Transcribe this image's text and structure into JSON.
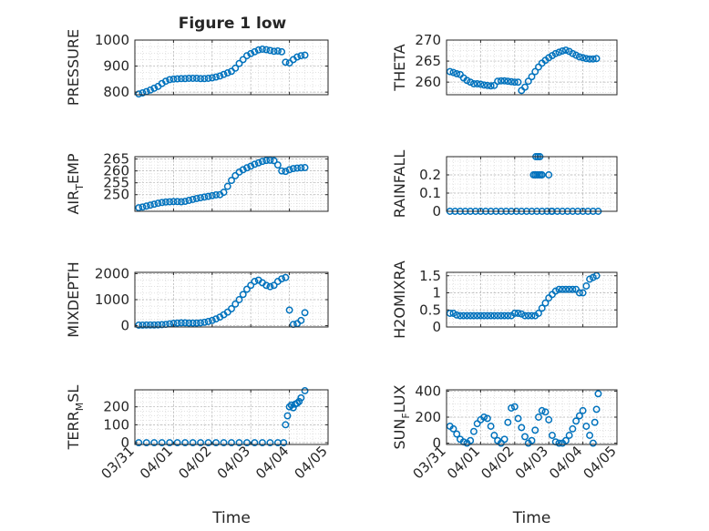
{
  "figure": {
    "title": "Figure 1 low"
  },
  "colors": {
    "marker": "#0072BD",
    "axis": "#262626",
    "grid": "#b3b3b3",
    "minor_grid": "#d0d0d0"
  },
  "time_ticks": [
    "03/31",
    "04/01",
    "04/02",
    "04/03",
    "04/04",
    "04/05"
  ],
  "chart_data": [
    {
      "type": "scatter",
      "ylabel": "PRESSURE",
      "xlabel": "",
      "ylim": [
        790,
        1000
      ],
      "yticks": [
        800,
        900,
        1000
      ],
      "grid": true,
      "x": [
        0.1,
        0.2,
        0.3,
        0.4,
        0.5,
        0.6,
        0.7,
        0.8,
        0.9,
        1.0,
        1.1,
        1.2,
        1.3,
        1.4,
        1.5,
        1.6,
        1.7,
        1.8,
        1.9,
        2.0,
        2.1,
        2.2,
        2.3,
        2.4,
        2.5,
        2.6,
        2.7,
        2.8,
        2.9,
        3.0,
        3.1,
        3.2,
        3.3,
        3.4,
        3.5,
        3.6,
        3.7,
        3.8,
        3.9,
        4.0,
        4.1,
        4.2,
        4.3,
        4.4
      ],
      "y": [
        793,
        797,
        802,
        808,
        815,
        822,
        833,
        842,
        848,
        850,
        851,
        852,
        852,
        853,
        853,
        853,
        852,
        852,
        853,
        855,
        858,
        862,
        868,
        874,
        880,
        892,
        910,
        925,
        940,
        948,
        955,
        962,
        965,
        963,
        960,
        957,
        958,
        955,
        915,
        912,
        925,
        935,
        940,
        942
      ]
    },
    {
      "type": "scatter",
      "ylabel": "THETA",
      "xlabel": "",
      "ylim": [
        257,
        270
      ],
      "yticks": [
        260,
        265,
        270
      ],
      "grid": true,
      "x": [
        0.1,
        0.2,
        0.3,
        0.4,
        0.5,
        0.6,
        0.7,
        0.8,
        0.9,
        1.0,
        1.1,
        1.2,
        1.3,
        1.4,
        1.5,
        1.6,
        1.7,
        1.8,
        1.9,
        2.0,
        2.1,
        2.2,
        2.3,
        2.4,
        2.5,
        2.6,
        2.7,
        2.8,
        2.9,
        3.0,
        3.1,
        3.2,
        3.3,
        3.4,
        3.5,
        3.6,
        3.7,
        3.8,
        3.9,
        4.0,
        4.1,
        4.2,
        4.3,
        4.4
      ],
      "y": [
        262.5,
        262.3,
        262.0,
        261.8,
        261.0,
        260.4,
        260.0,
        259.6,
        259.6,
        259.5,
        259.3,
        259.2,
        259.1,
        259.2,
        260.2,
        260.3,
        260.3,
        260.2,
        260.1,
        260.0,
        260.0,
        258.0,
        258.8,
        260.2,
        261.3,
        262.5,
        263.6,
        264.5,
        265.2,
        265.8,
        266.3,
        266.8,
        267.1,
        267.4,
        267.6,
        267.3,
        266.8,
        266.4,
        266.0,
        265.8,
        265.6,
        265.5,
        265.5,
        265.6
      ]
    },
    {
      "type": "scatter",
      "ylabel": "AIR_TEMP",
      "xlabel": "",
      "ylim": [
        243,
        266
      ],
      "yticks": [
        250,
        255,
        260,
        265
      ],
      "grid": true,
      "x": [
        0.1,
        0.2,
        0.3,
        0.4,
        0.5,
        0.6,
        0.7,
        0.8,
        0.9,
        1.0,
        1.1,
        1.2,
        1.3,
        1.4,
        1.5,
        1.6,
        1.7,
        1.8,
        1.9,
        2.0,
        2.1,
        2.2,
        2.3,
        2.4,
        2.5,
        2.6,
        2.7,
        2.8,
        2.9,
        3.0,
        3.1,
        3.2,
        3.3,
        3.4,
        3.5,
        3.6,
        3.7,
        3.8,
        3.9,
        4.0,
        4.1,
        4.2,
        4.3,
        4.4
      ],
      "y": [
        244.5,
        244.8,
        245.2,
        245.6,
        246.0,
        246.4,
        246.7,
        246.9,
        247.0,
        247.1,
        247.1,
        247.0,
        247.2,
        247.6,
        248.0,
        248.4,
        248.7,
        249.0,
        249.3,
        249.6,
        249.9,
        250.0,
        251.0,
        253.5,
        256.0,
        258.0,
        259.5,
        260.5,
        261.3,
        262.0,
        262.8,
        263.4,
        264.0,
        264.4,
        264.5,
        264.3,
        262.5,
        260.0,
        259.8,
        260.5,
        261.0,
        261.2,
        261.3,
        261.4
      ]
    },
    {
      "type": "scatter",
      "ylabel": "RAINFALL",
      "xlabel": "",
      "ylim": [
        0,
        0.3
      ],
      "yticks": [
        0,
        0.1,
        0.2
      ],
      "grid": true,
      "x": [
        0.1,
        0.25,
        0.4,
        0.55,
        0.7,
        0.85,
        1.0,
        1.15,
        1.3,
        1.45,
        1.6,
        1.75,
        1.9,
        2.05,
        2.2,
        2.35,
        2.5,
        2.65,
        2.8,
        2.95,
        3.1,
        3.25,
        3.4,
        3.55,
        3.7,
        3.85,
        4.0,
        4.15,
        4.3,
        4.45,
        2.55,
        2.6,
        2.65,
        2.7,
        2.75,
        2.8,
        2.62,
        2.68,
        2.74,
        3.0,
        3.08
      ],
      "y": [
        0,
        0,
        0,
        0,
        0,
        0,
        0,
        0,
        0,
        0,
        0,
        0,
        0,
        0,
        0,
        0,
        0,
        0,
        0,
        0,
        0,
        0,
        0,
        0,
        0,
        0,
        0,
        0,
        0,
        0,
        0.2,
        0.2,
        0.2,
        0.2,
        0.2,
        0.2,
        0.3,
        0.3,
        0.3,
        0.2,
        0
      ]
    },
    {
      "type": "scatter",
      "ylabel": "MIXDEPTH",
      "xlabel": "",
      "ylim": [
        -50,
        2050
      ],
      "yticks": [
        0,
        1000,
        2000
      ],
      "grid": true,
      "x": [
        0.1,
        0.2,
        0.3,
        0.4,
        0.5,
        0.6,
        0.7,
        0.8,
        0.9,
        1.0,
        1.1,
        1.2,
        1.3,
        1.4,
        1.5,
        1.6,
        1.7,
        1.8,
        1.9,
        2.0,
        2.1,
        2.2,
        2.3,
        2.4,
        2.5,
        2.6,
        2.7,
        2.8,
        2.9,
        3.0,
        3.1,
        3.2,
        3.3,
        3.4,
        3.5,
        3.6,
        3.7,
        3.8,
        3.9,
        4.0,
        4.1,
        4.2,
        4.3,
        4.4
      ],
      "y": [
        20,
        22,
        25,
        25,
        28,
        30,
        40,
        50,
        70,
        90,
        100,
        110,
        110,
        100,
        100,
        100,
        110,
        130,
        160,
        200,
        260,
        330,
        420,
        520,
        650,
        830,
        1000,
        1200,
        1400,
        1550,
        1700,
        1750,
        1650,
        1550,
        1500,
        1550,
        1700,
        1800,
        1850,
        600,
        50,
        80,
        200,
        500
      ]
    },
    {
      "type": "scatter",
      "ylabel": "H2OMIXRA",
      "xlabel": "",
      "ylim": [
        0,
        1.6
      ],
      "yticks": [
        0,
        0.5,
        1,
        1.5
      ],
      "grid": true,
      "x": [
        0.1,
        0.2,
        0.3,
        0.4,
        0.5,
        0.6,
        0.7,
        0.8,
        0.9,
        1.0,
        1.1,
        1.2,
        1.3,
        1.4,
        1.5,
        1.6,
        1.7,
        1.8,
        1.9,
        2.0,
        2.1,
        2.2,
        2.3,
        2.4,
        2.5,
        2.6,
        2.7,
        2.8,
        2.9,
        3.0,
        3.1,
        3.2,
        3.3,
        3.4,
        3.5,
        3.6,
        3.7,
        3.8,
        3.9,
        4.0,
        4.1,
        4.2,
        4.3,
        4.4
      ],
      "y": [
        0.4,
        0.4,
        0.35,
        0.33,
        0.33,
        0.33,
        0.33,
        0.33,
        0.33,
        0.33,
        0.33,
        0.33,
        0.33,
        0.33,
        0.33,
        0.33,
        0.33,
        0.33,
        0.33,
        0.4,
        0.4,
        0.38,
        0.33,
        0.33,
        0.33,
        0.33,
        0.4,
        0.55,
        0.7,
        0.85,
        0.95,
        1.05,
        1.1,
        1.1,
        1.1,
        1.1,
        1.1,
        1.1,
        1.0,
        1.0,
        1.2,
        1.4,
        1.45,
        1.5
      ]
    },
    {
      "type": "scatter",
      "ylabel": "TERR_MSL",
      "xlabel": "Time",
      "ylim": [
        -10,
        295
      ],
      "yticks": [
        0,
        100,
        200
      ],
      "grid": true,
      "x": [
        0.1,
        0.3,
        0.5,
        0.7,
        0.9,
        1.1,
        1.3,
        1.5,
        1.7,
        1.9,
        2.1,
        2.3,
        2.5,
        2.7,
        2.9,
        3.1,
        3.3,
        3.5,
        3.7,
        3.85,
        3.9,
        3.95,
        4.0,
        4.05,
        4.1,
        4.15,
        4.2,
        4.25,
        4.3,
        4.4
      ],
      "y": [
        0,
        0,
        0,
        0,
        0,
        0,
        0,
        0,
        0,
        0,
        0,
        0,
        0,
        0,
        0,
        0,
        0,
        0,
        0,
        0,
        100,
        150,
        200,
        210,
        195,
        215,
        220,
        230,
        250,
        290
      ]
    },
    {
      "type": "scatter",
      "ylabel": "SUN_FLUX",
      "xlabel": "Time",
      "ylim": [
        -10,
        410
      ],
      "yticks": [
        0,
        200,
        400
      ],
      "grid": true,
      "x": [
        0.1,
        0.2,
        0.3,
        0.4,
        0.5,
        0.6,
        0.7,
        0.8,
        0.9,
        1.0,
        1.1,
        1.2,
        1.3,
        1.4,
        1.5,
        1.6,
        1.7,
        1.8,
        1.9,
        2.0,
        2.1,
        2.2,
        2.3,
        2.4,
        2.5,
        2.6,
        2.7,
        2.8,
        2.9,
        3.0,
        3.1,
        3.2,
        3.3,
        3.4,
        3.5,
        3.6,
        3.7,
        3.8,
        3.9,
        4.0,
        4.1,
        4.2,
        4.3,
        4.35,
        4.4,
        4.45
      ],
      "y": [
        130,
        110,
        70,
        30,
        10,
        0,
        20,
        90,
        150,
        180,
        200,
        190,
        130,
        60,
        20,
        0,
        30,
        160,
        270,
        280,
        190,
        120,
        50,
        0,
        20,
        100,
        200,
        250,
        240,
        180,
        60,
        10,
        0,
        0,
        20,
        60,
        110,
        170,
        210,
        250,
        130,
        60,
        0,
        160,
        260,
        380
      ]
    }
  ]
}
